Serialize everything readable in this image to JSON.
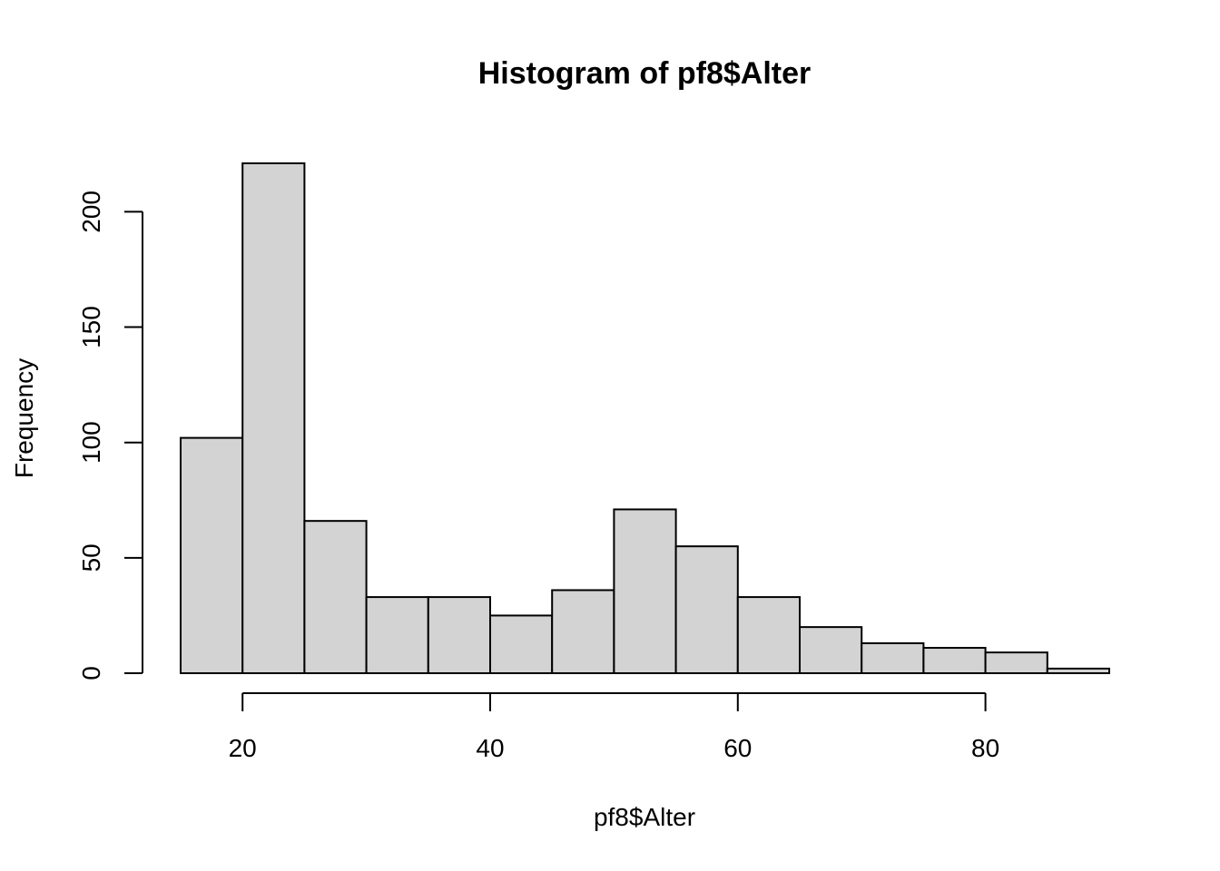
{
  "chart_data": {
    "type": "bar",
    "title": "Histogram of pf8$Alter",
    "xlabel": "pf8$Alter",
    "ylabel": "Frequency",
    "bin_width": 5,
    "bins": [
      {
        "start": 15,
        "end": 20,
        "count": 102
      },
      {
        "start": 20,
        "end": 25,
        "count": 221
      },
      {
        "start": 25,
        "end": 30,
        "count": 66
      },
      {
        "start": 30,
        "end": 35,
        "count": 33
      },
      {
        "start": 35,
        "end": 40,
        "count": 33
      },
      {
        "start": 40,
        "end": 45,
        "count": 25
      },
      {
        "start": 45,
        "end": 50,
        "count": 36
      },
      {
        "start": 50,
        "end": 55,
        "count": 71
      },
      {
        "start": 55,
        "end": 60,
        "count": 55
      },
      {
        "start": 60,
        "end": 65,
        "count": 33
      },
      {
        "start": 65,
        "end": 70,
        "count": 20
      },
      {
        "start": 70,
        "end": 75,
        "count": 13
      },
      {
        "start": 75,
        "end": 80,
        "count": 11
      },
      {
        "start": 80,
        "end": 85,
        "count": 9
      },
      {
        "start": 85,
        "end": 90,
        "count": 2
      }
    ],
    "x_ticks": [
      20,
      40,
      60,
      80
    ],
    "x_tick_labels": [
      "20",
      "40",
      "60",
      "80"
    ],
    "y_ticks": [
      0,
      50,
      100,
      150,
      200
    ],
    "y_tick_labels": [
      "0",
      "50",
      "100",
      "150",
      "200"
    ],
    "xlim": [
      15,
      90
    ],
    "ylim": [
      0,
      221
    ],
    "grid": false,
    "bar_color": "#d3d3d3",
    "edge_color": "#000000"
  }
}
